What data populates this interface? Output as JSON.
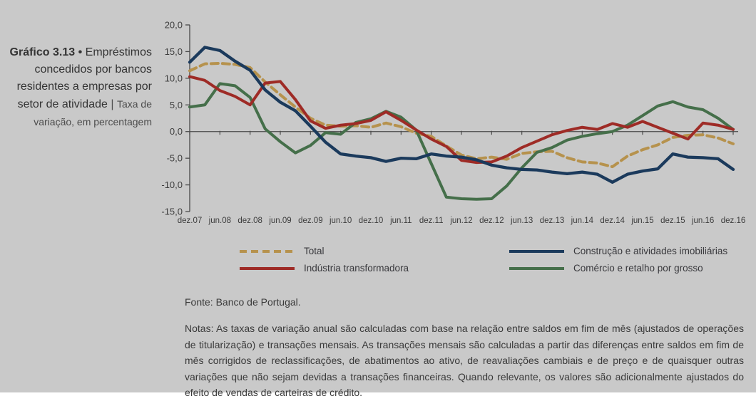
{
  "page": {
    "background": "#c9c9c9",
    "axis_color": "#4a4a4a",
    "text_color": "#3a3a3a"
  },
  "header": {
    "kicker": "Gráfico 3.13",
    "bullet": "•",
    "separator": "|"
  },
  "footer": {
    "fonte": "Fonte: Banco de Portugal.",
    "notas": "Notas: As taxas de variação anual são calculadas com base na relação entre saldos em fim de mês (ajustados de operações de titularização) e transações mensais. As transações mensais são calculadas a partir das diferenças entre saldos em fim de mês corrigidos de reclassificações, de abatimentos ao ativo, de reavaliações cambiais e de preço e de quaisquer outras variações que não sejam devidas a transações financeiras. Quando relevante, os valores são adicionalmente ajustados do efeito de vendas de carteiras de crédito."
  },
  "chart_data": {
    "type": "line",
    "title": "Empréstimos concedidos por bancos residentes a empresas por setor de atividade",
    "subtitle": "Taxa de variação, em percentagem",
    "ylabel": "Taxa de variação, em percentagem",
    "ylim": [
      -15,
      20
    ],
    "ytick_step": 5,
    "y_tick_labels": [
      "20,0",
      "15,0",
      "10,0",
      "5,0",
      "0,0",
      "-5,0",
      "-10,0",
      "-15,0"
    ],
    "grid": "zero-line-only",
    "legend_position": "bottom",
    "x": [
      "dez.07",
      "mar.08",
      "jun.08",
      "set.08",
      "dez.08",
      "mar.09",
      "jun.09",
      "set.09",
      "dez.09",
      "mar.10",
      "jun.10",
      "set.10",
      "dez.10",
      "mar.11",
      "jun.11",
      "set.11",
      "dez.11",
      "mar.12",
      "jun.12",
      "set.12",
      "dez.12",
      "mar.13",
      "jun.13",
      "set.13",
      "dez.13",
      "mar.14",
      "jun.14",
      "set.14",
      "dez.14",
      "mar.15",
      "jun.15",
      "set.15",
      "dez.15",
      "mar.16",
      "jun.16",
      "set.16",
      "dez.16"
    ],
    "x_tick_labels": [
      "dez.07",
      "jun.08",
      "dez.08",
      "jun.09",
      "dez.09",
      "jun.10",
      "dez.10",
      "jun.11",
      "dez.11",
      "jun.12",
      "dez.12",
      "jun.13",
      "dez.13",
      "jun.14",
      "dez.14",
      "jun.15",
      "dez.15",
      "jun.16",
      "dez.16"
    ],
    "series": [
      {
        "name": "Total",
        "color": "#b6924d",
        "style": "dashed",
        "values": [
          11.4,
          12.7,
          12.8,
          12.6,
          12.0,
          9.3,
          6.9,
          4.6,
          2.5,
          1.2,
          1.0,
          1.1,
          0.8,
          1.6,
          0.9,
          -0.3,
          -0.9,
          -2.7,
          -4.4,
          -5.1,
          -4.8,
          -5.2,
          -4.1,
          -3.8,
          -3.7,
          -4.9,
          -5.7,
          -5.9,
          -6.6,
          -4.6,
          -3.4,
          -2.5,
          -1.1,
          -0.7,
          -0.6,
          -1.2,
          -2.3
        ]
      },
      {
        "name": "Construção e atividades imobiliárias",
        "color": "#1b3a5c",
        "style": "solid",
        "values": [
          13.0,
          15.8,
          15.2,
          13.2,
          11.5,
          7.8,
          5.5,
          3.9,
          1.0,
          -2.0,
          -4.2,
          -4.6,
          -4.9,
          -5.6,
          -5.0,
          -5.1,
          -4.2,
          -4.6,
          -4.8,
          -5.3,
          -6.3,
          -6.8,
          -7.1,
          -7.2,
          -7.6,
          -7.9,
          -7.6,
          -8.0,
          -9.5,
          -8.0,
          -7.4,
          -7.0,
          -4.2,
          -4.8,
          -4.9,
          -5.1,
          -7.1
        ]
      },
      {
        "name": "Indústria transformadora",
        "color": "#9e2b26",
        "style": "solid",
        "values": [
          10.3,
          9.6,
          7.7,
          6.6,
          5.0,
          9.1,
          9.4,
          6.0,
          2.0,
          0.6,
          1.2,
          1.5,
          2.1,
          3.7,
          2.1,
          0.3,
          -1.4,
          -2.8,
          -5.4,
          -5.8,
          -5.7,
          -4.6,
          -3.0,
          -1.8,
          -0.6,
          0.2,
          0.8,
          0.4,
          1.5,
          0.8,
          1.9,
          0.8,
          -0.3,
          -1.4,
          1.6,
          1.2,
          0.4
        ]
      },
      {
        "name": "Comércio e retalho por grosso",
        "color": "#456f4a",
        "style": "solid",
        "values": [
          4.6,
          5.0,
          9.0,
          8.6,
          6.4,
          0.5,
          -1.9,
          -4.0,
          -2.6,
          -0.2,
          -0.5,
          1.7,
          2.4,
          3.8,
          2.7,
          0.3,
          -6.0,
          -12.3,
          -12.6,
          -12.7,
          -12.6,
          -10.2,
          -6.8,
          -3.9,
          -3.0,
          -1.6,
          -0.9,
          -0.4,
          0.0,
          1.2,
          3.0,
          4.8,
          5.6,
          4.6,
          4.1,
          2.5,
          0.4
        ]
      }
    ]
  }
}
